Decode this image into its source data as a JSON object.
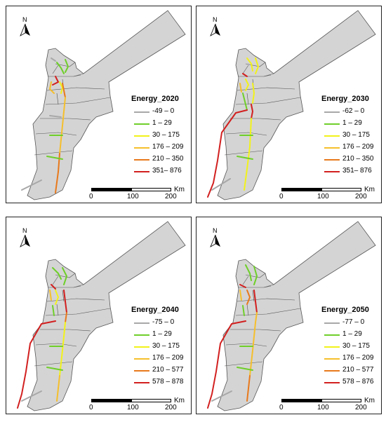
{
  "north_label": "N",
  "scale": {
    "unit": "Km",
    "ticks": [
      "0",
      "100",
      "200"
    ]
  },
  "colors": {
    "country_fill": "#d4d4d4",
    "border": "#555555",
    "neg": "#a8a8a8",
    "c1": "#6fcf2a",
    "c2": "#f2f21a",
    "c3": "#f5bf2c",
    "c4": "#e8791c",
    "c5": "#d21f1f"
  },
  "panels": [
    {
      "title": "Energy_2020",
      "legend": [
        {
          "label": "-49 – 0",
          "color": "#a8a8a8"
        },
        {
          "label": "1 – 29",
          "color": "#6fcf2a"
        },
        {
          "label": "30 – 175",
          "color": "#f2f21a"
        },
        {
          "label": "176 – 209",
          "color": "#f5bf2c"
        },
        {
          "label": "210 – 350",
          "color": "#e8791c"
        },
        {
          "label": "351– 876",
          "color": "#d21f1f"
        }
      ]
    },
    {
      "title": "Energy_2030",
      "legend": [
        {
          "label": "-62 – 0",
          "color": "#a8a8a8"
        },
        {
          "label": "1 – 29",
          "color": "#6fcf2a"
        },
        {
          "label": "30 – 175",
          "color": "#f2f21a"
        },
        {
          "label": "176 – 209",
          "color": "#f5bf2c"
        },
        {
          "label": "210 – 350",
          "color": "#e8791c"
        },
        {
          "label": "351– 876",
          "color": "#d21f1f"
        }
      ]
    },
    {
      "title": "Energy_2040",
      "legend": [
        {
          "label": "-75 – 0",
          "color": "#a8a8a8"
        },
        {
          "label": "1 – 29",
          "color": "#6fcf2a"
        },
        {
          "label": "30 – 175",
          "color": "#f2f21a"
        },
        {
          "label": "176 – 209",
          "color": "#f5bf2c"
        },
        {
          "label": "210 – 577",
          "color": "#e8791c"
        },
        {
          "label": "578 – 878",
          "color": "#d21f1f"
        }
      ]
    },
    {
      "title": "Energy_2050",
      "legend": [
        {
          "label": "-77 – 0",
          "color": "#a8a8a8"
        },
        {
          "label": "1 – 29",
          "color": "#6fcf2a"
        },
        {
          "label": "30 – 175",
          "color": "#f2f21a"
        },
        {
          "label": "176 – 209",
          "color": "#f5bf2c"
        },
        {
          "label": "210 – 577",
          "color": "#e8791c"
        },
        {
          "label": "578 – 876",
          "color": "#d21f1f"
        }
      ]
    }
  ]
}
